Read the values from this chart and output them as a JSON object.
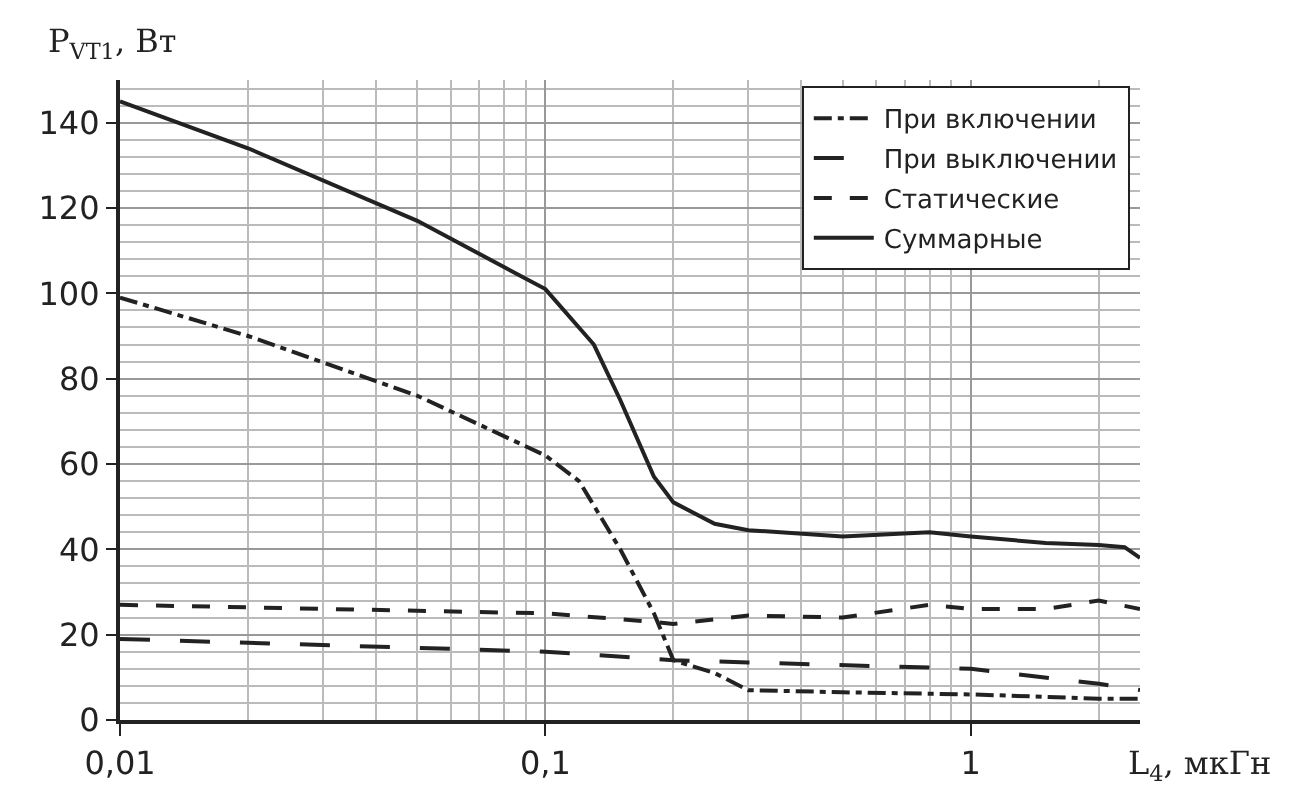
{
  "chart_data": {
    "type": "line",
    "xlabel": "L$_{4}$, мкГн",
    "ylabel": "P$_{VT1}$, Вт",
    "log": "x",
    "grid": true,
    "legend": "top right",
    "marker": "none",
    "xlim": [
      0.01,
      2.5
    ],
    "xticks": [
      {
        "value": 0.01,
        "label": "0,01"
      },
      {
        "value": 0.1,
        "label": "0,1"
      },
      1
    ],
    "ylim": [
      0,
      150
    ],
    "yticks": [
      0,
      20,
      40,
      60,
      80,
      100,
      120,
      140
    ],
    "series": [
      {
        "name": "При включении",
        "color": "#222222",
        "line_style": "dashdot",
        "x": [
          0.01,
          0.02,
          0.05,
          0.1,
          0.12,
          0.15,
          0.18,
          0.2,
          0.25,
          0.3,
          0.5,
          1,
          2,
          2.5
        ],
        "values": [
          99,
          90,
          76,
          62,
          56,
          40,
          25,
          14,
          11,
          7,
          6.5,
          6,
          5,
          5
        ]
      },
      {
        "name": "При выключении",
        "color": "#222222",
        "line_style": "longdash",
        "x": [
          0.01,
          0.1,
          0.2,
          0.3,
          1,
          2,
          2.5
        ],
        "values": [
          19,
          16,
          14,
          13.5,
          12,
          8.5,
          7
        ]
      },
      {
        "name": "Статические",
        "color": "#222222",
        "line_style": "dashed",
        "x": [
          0.01,
          0.1,
          0.18,
          0.2,
          0.3,
          0.5,
          0.8,
          1,
          1.5,
          2,
          2.5
        ],
        "values": [
          27,
          25,
          23,
          22.5,
          24.5,
          24,
          27,
          26,
          26,
          28,
          26
        ]
      },
      {
        "name": "Суммарные",
        "color": "#222222",
        "line_style": "solid",
        "x": [
          0.01,
          0.02,
          0.05,
          0.1,
          0.13,
          0.15,
          0.18,
          0.2,
          0.25,
          0.3,
          0.5,
          0.8,
          1,
          1.5,
          2,
          2.3,
          2.5
        ],
        "values": [
          145,
          134,
          117,
          101,
          88,
          75,
          57,
          51,
          46,
          44.5,
          43,
          44,
          43,
          41.5,
          41,
          40.5,
          38
        ]
      }
    ]
  }
}
